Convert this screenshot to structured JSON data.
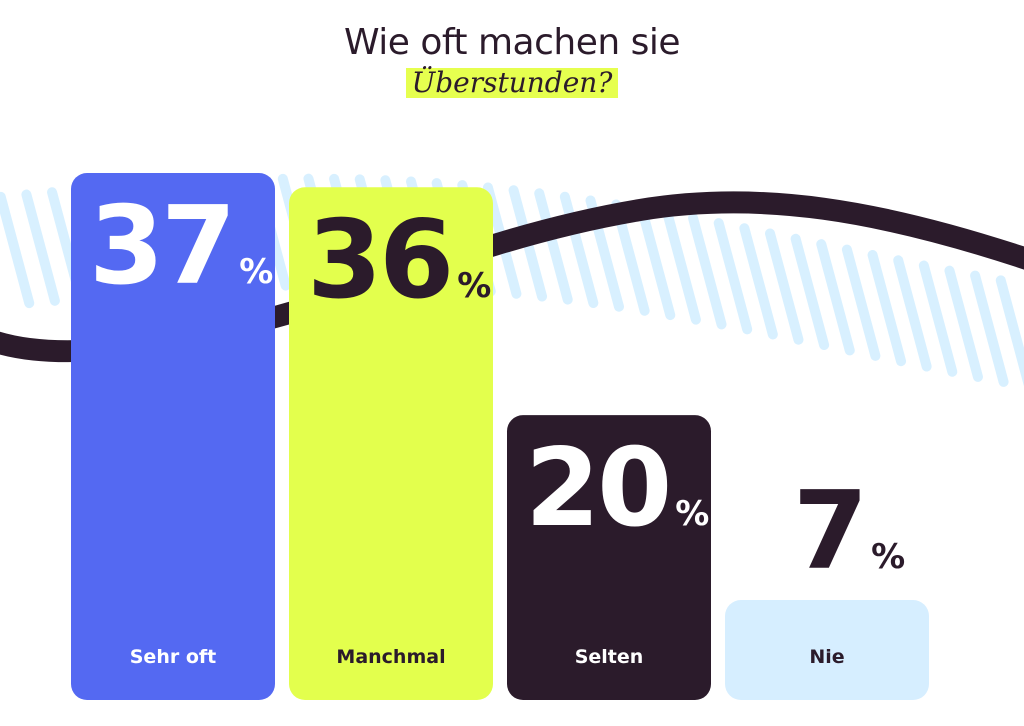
{
  "title": "Wie oft machen sie",
  "subtitle": "Überstunden?",
  "percent_sign": "%",
  "colors": {
    "bar_1": "#5469f2",
    "bar_2": "#e3ff4d",
    "bar_3": "#2b1b2b",
    "bar_4": "#d6eeff",
    "curve": "#2b1b2b",
    "stripes": "#d8f0ff"
  },
  "chart_data": {
    "type": "bar",
    "title": "Wie oft machen sie Überstunden?",
    "categories": [
      "Sehr oft",
      "Manchmal",
      "Selten",
      "Nie"
    ],
    "values": [
      37,
      36,
      20,
      7
    ],
    "unit": "%",
    "ylim": [
      0,
      40
    ],
    "grid": false,
    "legend": "none"
  }
}
